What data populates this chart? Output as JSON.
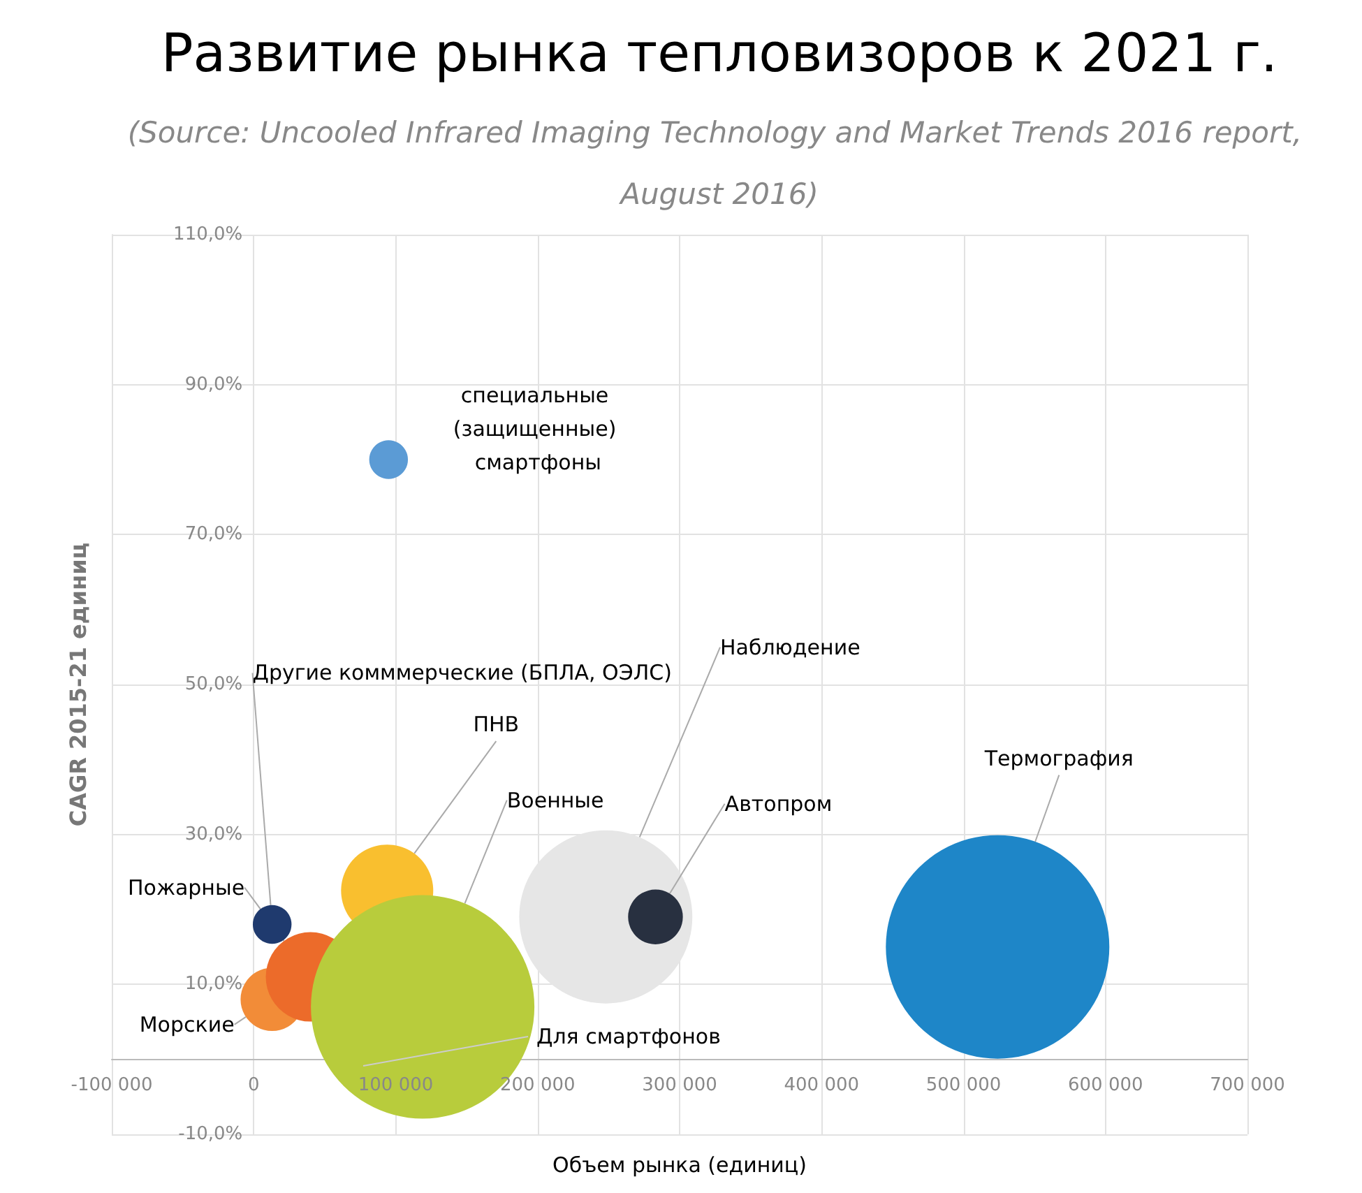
{
  "chart_data": {
    "type": "bubble",
    "title": "Развитие рынка тепловизоров к 2021 г.",
    "subtitle": "(Source: Uncooled Infrared Imaging Technology and Market Trends 2016 report, August 2016)",
    "xlabel": "Объем рынка (единиц)",
    "ylabel": "CAGR 2015-21 единиц",
    "xlim": [
      -100000,
      700000
    ],
    "xticks": [
      {
        "value": -100000,
        "label": "-100 000"
      },
      0,
      {
        "value": 100000,
        "label": "100 000"
      },
      {
        "value": 200000,
        "label": "200 000"
      },
      {
        "value": 300000,
        "label": "300 000"
      },
      {
        "value": 400000,
        "label": "400 000"
      },
      {
        "value": 500000,
        "label": "500 000"
      },
      {
        "value": 600000,
        "label": "600 000"
      },
      {
        "value": 700000,
        "label": "700 000"
      }
    ],
    "ylim": [
      -10,
      110
    ],
    "yticks": [
      {
        "value": -10,
        "label": "-10,0%"
      },
      {
        "value": 10,
        "label": "10,0%"
      },
      {
        "value": 30,
        "label": "30,0%"
      },
      {
        "value": 50,
        "label": "50,0%"
      },
      {
        "value": 70,
        "label": "70,0%"
      },
      {
        "value": 90,
        "label": "90,0%"
      },
      {
        "value": 110,
        "label": "110,0%"
      }
    ],
    "grid": true,
    "series": [
      {
        "name": "ПНВ",
        "color": "#f9bf2f",
        "x": [
          94000
        ],
        "values": [
          22.5
        ],
        "sizes": [
          0.17
        ]
      },
      {
        "name": "Морские",
        "color": "#f28c38",
        "x": [
          13000
        ],
        "values": [
          8
        ],
        "sizes": [
          0.08
        ]
      },
      {
        "name": "Пожарные",
        "color": "#ec6b2a",
        "x": [
          40000
        ],
        "values": [
          11
        ],
        "sizes": [
          0.16
        ]
      },
      {
        "name": "Другие комммерческие (БПЛА, ОЭЛС)",
        "color": "#1f3a6e",
        "x": [
          13000
        ],
        "values": [
          18
        ],
        "sizes": [
          0.03
        ]
      },
      {
        "name": "Военные",
        "color": "#b8cc3c",
        "x": [
          119000
        ],
        "values": [
          7
        ],
        "sizes": [
          1
        ]
      },
      {
        "name": "Наблюдение",
        "color": "#e6e6e6",
        "x": [
          248000
        ],
        "values": [
          19
        ],
        "sizes": [
          0.6
        ]
      },
      {
        "name": "Автопром",
        "color": "#283040",
        "x": [
          283000
        ],
        "values": [
          19
        ],
        "sizes": [
          0.06
        ]
      },
      {
        "name": "Термография",
        "color": "#1e86c8",
        "x": [
          524000
        ],
        "values": [
          15
        ],
        "sizes": [
          1
        ]
      },
      {
        "name": "специальные (защищенные) смартфоны",
        "color": "#5b9bd5",
        "x": [
          95000
        ],
        "values": [
          80
        ],
        "sizes": [
          0.03
        ]
      }
    ],
    "annotations": [
      "Для смартфонов"
    ]
  }
}
